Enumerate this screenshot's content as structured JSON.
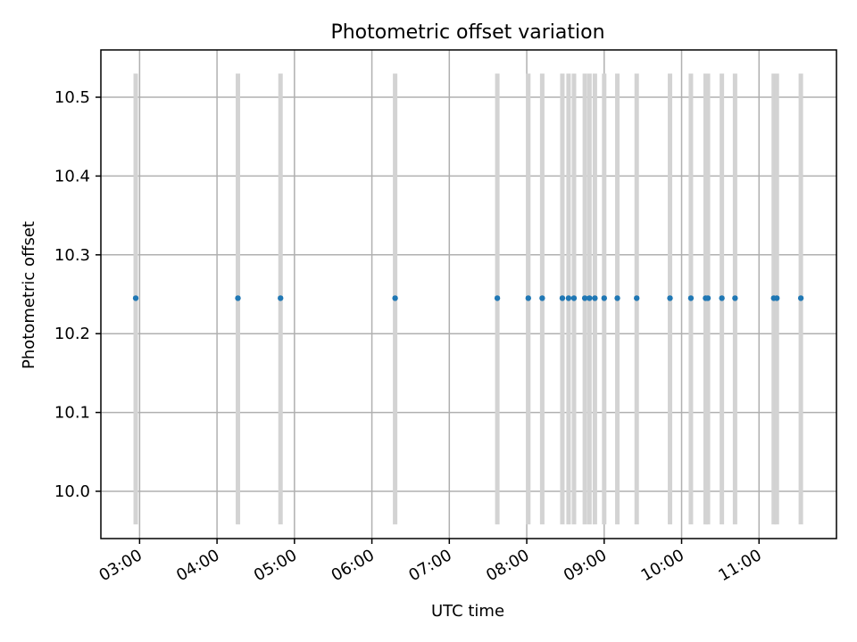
{
  "chart_data": {
    "type": "scatter",
    "title": "Photometric offset variation",
    "xlabel": "UTC time",
    "ylabel": "Photometric offset",
    "xlim": [
      2.5,
      12.0
    ],
    "ylim": [
      9.94,
      10.56
    ],
    "grid": true,
    "x_ticks": [
      3,
      4,
      5,
      6,
      7,
      8,
      9,
      10,
      11
    ],
    "x_tick_labels": [
      "03:00",
      "04:00",
      "05:00",
      "06:00",
      "07:00",
      "08:00",
      "09:00",
      "10:00",
      "11:00"
    ],
    "y_ticks": [
      10.0,
      10.1,
      10.2,
      10.3,
      10.4,
      10.5
    ],
    "y_tick_labels": [
      "10.0",
      "10.1",
      "10.2",
      "10.3",
      "10.4",
      "10.5"
    ],
    "series": [
      {
        "name": "Photometric offset",
        "color": "#1f77b4",
        "errorbar_color": "#d3d3d3",
        "errorbar_range": [
          9.958,
          10.53
        ],
        "x": [
          2.95,
          4.27,
          4.82,
          6.3,
          7.62,
          8.02,
          8.2,
          8.46,
          8.54,
          8.61,
          8.75,
          8.81,
          8.88,
          9.0,
          9.17,
          9.42,
          9.85,
          10.12,
          10.31,
          10.34,
          10.52,
          10.69,
          11.19,
          11.23,
          11.54
        ],
        "y": [
          10.245,
          10.245,
          10.245,
          10.245,
          10.245,
          10.245,
          10.245,
          10.245,
          10.245,
          10.245,
          10.245,
          10.245,
          10.245,
          10.245,
          10.245,
          10.245,
          10.245,
          10.245,
          10.245,
          10.245,
          10.245,
          10.245,
          10.245,
          10.245,
          10.245
        ]
      }
    ]
  }
}
